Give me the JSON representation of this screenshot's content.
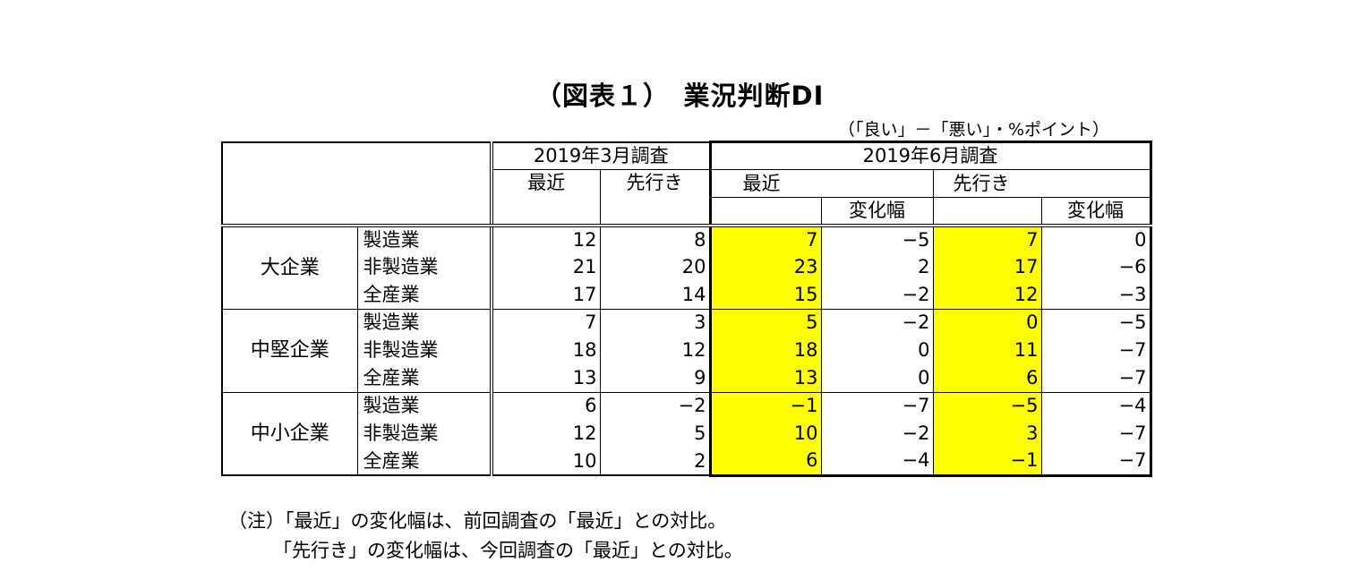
{
  "title": "（図表１）　業況判断DI",
  "unit": "（「良い」－「悪い」・%ポイント）",
  "chart_data": {
    "type": "table",
    "header": {
      "survey_march": "2019年3月調査",
      "survey_june": "2019年6月調査",
      "recent": "最近",
      "outlook": "先行き",
      "change": "変化幅"
    },
    "groups": [
      {
        "name": "大企業",
        "rows": [
          {
            "industry": "製造業",
            "mar_recent": "12",
            "mar_outlook": "8",
            "jun_recent": "7",
            "jun_recent_change": "−5",
            "jun_outlook": "7",
            "jun_outlook_change": "0"
          },
          {
            "industry": "非製造業",
            "mar_recent": "21",
            "mar_outlook": "20",
            "jun_recent": "23",
            "jun_recent_change": "2",
            "jun_outlook": "17",
            "jun_outlook_change": "−6"
          },
          {
            "industry": "全産業",
            "mar_recent": "17",
            "mar_outlook": "14",
            "jun_recent": "15",
            "jun_recent_change": "−2",
            "jun_outlook": "12",
            "jun_outlook_change": "−3"
          }
        ]
      },
      {
        "name": "中堅企業",
        "rows": [
          {
            "industry": "製造業",
            "mar_recent": "7",
            "mar_outlook": "3",
            "jun_recent": "5",
            "jun_recent_change": "−2",
            "jun_outlook": "0",
            "jun_outlook_change": "−5"
          },
          {
            "industry": "非製造業",
            "mar_recent": "18",
            "mar_outlook": "12",
            "jun_recent": "18",
            "jun_recent_change": "0",
            "jun_outlook": "11",
            "jun_outlook_change": "−7"
          },
          {
            "industry": "全産業",
            "mar_recent": "13",
            "mar_outlook": "9",
            "jun_recent": "13",
            "jun_recent_change": "0",
            "jun_outlook": "6",
            "jun_outlook_change": "−7"
          }
        ]
      },
      {
        "name": "中小企業",
        "rows": [
          {
            "industry": "製造業",
            "mar_recent": "6",
            "mar_outlook": "−2",
            "jun_recent": "−1",
            "jun_recent_change": "−7",
            "jun_outlook": "−5",
            "jun_outlook_change": "−4"
          },
          {
            "industry": "非製造業",
            "mar_recent": "12",
            "mar_outlook": "5",
            "jun_recent": "10",
            "jun_recent_change": "−2",
            "jun_outlook": "3",
            "jun_outlook_change": "−7"
          },
          {
            "industry": "全産業",
            "mar_recent": "10",
            "mar_outlook": "2",
            "jun_recent": "6",
            "jun_recent_change": "−4",
            "jun_outlook": "−1",
            "jun_outlook_change": "−7"
          }
        ]
      }
    ],
    "highlight_color": "#ffff00"
  },
  "notes": [
    "（注）「最近」の変化幅は、前回調査の「最近」との対比。",
    "「先行き」の変化幅は、今回調査の「最近」との対比。"
  ]
}
